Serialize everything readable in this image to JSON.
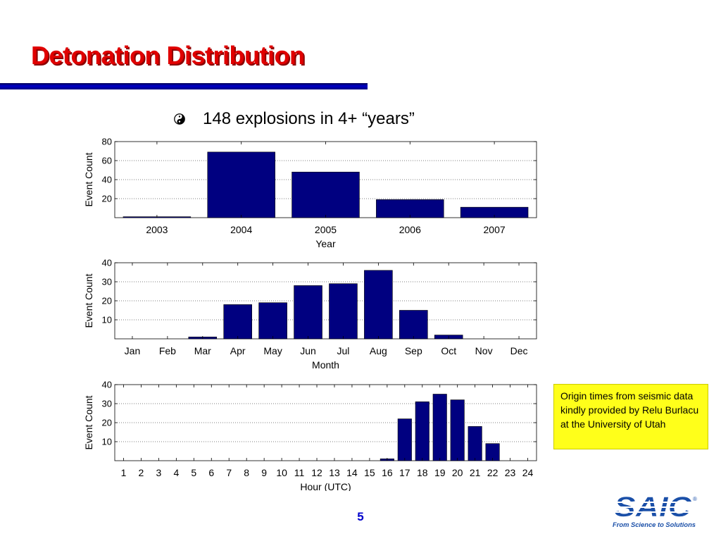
{
  "slide": {
    "title": "Detonation Distribution",
    "bullet": "148 explosions in 4+ “years”",
    "note": "Origin times from seismic data kindly provided by Relu Burlacu at the University of Utah",
    "page_number": "5"
  },
  "logo": {
    "name": "SAIC",
    "registered": "®",
    "tagline": "From Science to Solutions"
  },
  "colors": {
    "title": "#e00000",
    "bar": "#000080",
    "note_background": "#ffff1a",
    "page_number": "#0000cc",
    "logo": "#1a4fa8"
  },
  "chart_data": [
    {
      "type": "bar",
      "categories": [
        "2003",
        "2004",
        "2005",
        "2006",
        "2007"
      ],
      "values": [
        1,
        69,
        48,
        19,
        11
      ],
      "xlabel": "Year",
      "ylabel": "Event Count",
      "ylim": [
        0,
        80
      ],
      "yticks": [
        20,
        40,
        60,
        80
      ],
      "grid": true
    },
    {
      "type": "bar",
      "categories": [
        "Jan",
        "Feb",
        "Mar",
        "Apr",
        "May",
        "Jun",
        "Jul",
        "Aug",
        "Sep",
        "Oct",
        "Nov",
        "Dec"
      ],
      "values": [
        0,
        0,
        1,
        18,
        19,
        28,
        29,
        36,
        15,
        2,
        0,
        0
      ],
      "xlabel": "Month",
      "ylabel": "Event Count",
      "ylim": [
        0,
        40
      ],
      "yticks": [
        10,
        20,
        30,
        40
      ],
      "grid": true
    },
    {
      "type": "bar",
      "categories": [
        "1",
        "2",
        "3",
        "4",
        "5",
        "6",
        "7",
        "8",
        "9",
        "10",
        "11",
        "12",
        "13",
        "14",
        "15",
        "16",
        "17",
        "18",
        "19",
        "20",
        "21",
        "22",
        "23",
        "24"
      ],
      "values": [
        0,
        0,
        0,
        0,
        0,
        0,
        0,
        0,
        0,
        0,
        0,
        0,
        0,
        0,
        0,
        1,
        22,
        31,
        35,
        32,
        18,
        9,
        0,
        0
      ],
      "xlabel": "Hour (UTC)",
      "ylabel": "Event Count",
      "ylim": [
        0,
        40
      ],
      "yticks": [
        10,
        20,
        30,
        40
      ],
      "grid": true
    }
  ]
}
